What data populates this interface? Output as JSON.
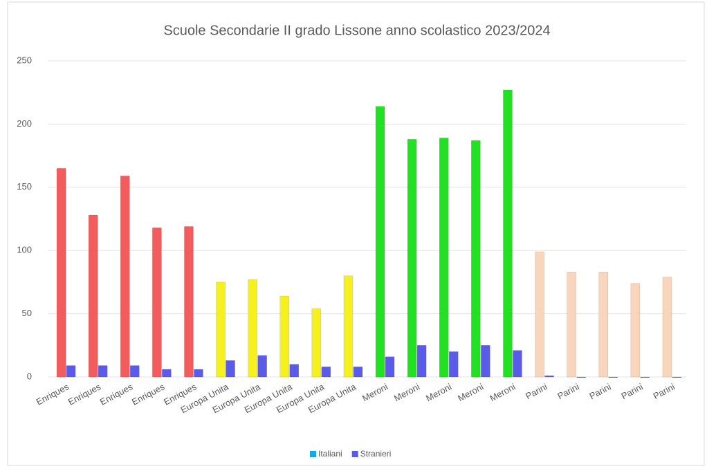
{
  "chart_data": {
    "type": "bar",
    "title": "Scuole Secondarie II grado Lissone anno scolastico 2023/2024",
    "categories": [
      "Enriques",
      "Enriques",
      "Enriques",
      "Enriques",
      "Enriques",
      "Europa Unita",
      "Europa Unita",
      "Europa Unita",
      "Europa Unita",
      "Europa Unita",
      "Meroni",
      "Meroni",
      "Meroni",
      "Meroni",
      "Meroni",
      "Parini",
      "Parini",
      "Parini",
      "Parini",
      "Parini"
    ],
    "series": [
      {
        "name": "Italiani",
        "color": "#1aa7e0",
        "colors": [
          "#f25c5c",
          "#f25c5c",
          "#f25c5c",
          "#f25c5c",
          "#f25c5c",
          "#f5f01e",
          "#f5f01e",
          "#f5f01e",
          "#f5f01e",
          "#f5f01e",
          "#22e022",
          "#22e022",
          "#22e022",
          "#22e022",
          "#22e022",
          "#f8d5bd",
          "#f8d5bd",
          "#f8d5bd",
          "#f8d5bd",
          "#f8d5bd"
        ],
        "values": [
          165,
          128,
          159,
          118,
          119,
          75,
          77,
          64,
          54,
          80,
          214,
          188,
          189,
          187,
          227,
          99,
          83,
          83,
          74,
          79
        ]
      },
      {
        "name": "Stranieri",
        "color": "#5b5bea",
        "values": [
          9,
          9,
          9,
          6,
          6,
          13,
          17,
          10,
          8,
          8,
          16,
          25,
          20,
          25,
          21,
          1,
          0,
          0,
          0,
          0
        ]
      }
    ],
    "ylim": [
      0,
      250
    ],
    "yticks": [
      0,
      50,
      100,
      150,
      200,
      250
    ],
    "grid": true,
    "legend": "bottom"
  }
}
